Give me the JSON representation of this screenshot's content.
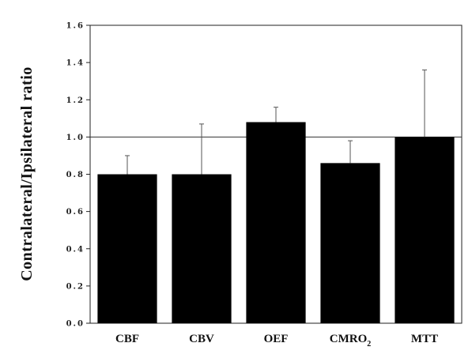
{
  "chart_data": {
    "type": "bar",
    "title": "",
    "xlabel": "",
    "ylabel": "Contralateral/Ipsilateral  ratio",
    "ylim": [
      0.0,
      1.6
    ],
    "yticks": [
      "0.0",
      "0.2",
      "0.4",
      "0.6",
      "0.8",
      "1.0",
      "1.2",
      "1.4",
      "1.6"
    ],
    "reference_line": 1.0,
    "grid": false,
    "legend": "none",
    "bar_color": "#000000",
    "categories": [
      {
        "label": "CBF",
        "sub": ""
      },
      {
        "label": "CBV",
        "sub": ""
      },
      {
        "label": "OEF",
        "sub": ""
      },
      {
        "label": "CMRO",
        "sub": "2"
      },
      {
        "label": "MTT",
        "sub": ""
      }
    ],
    "values": [
      0.8,
      0.8,
      1.08,
      0.86,
      1.0
    ],
    "error_upper": [
      0.9,
      1.07,
      1.16,
      0.98,
      1.36
    ]
  }
}
